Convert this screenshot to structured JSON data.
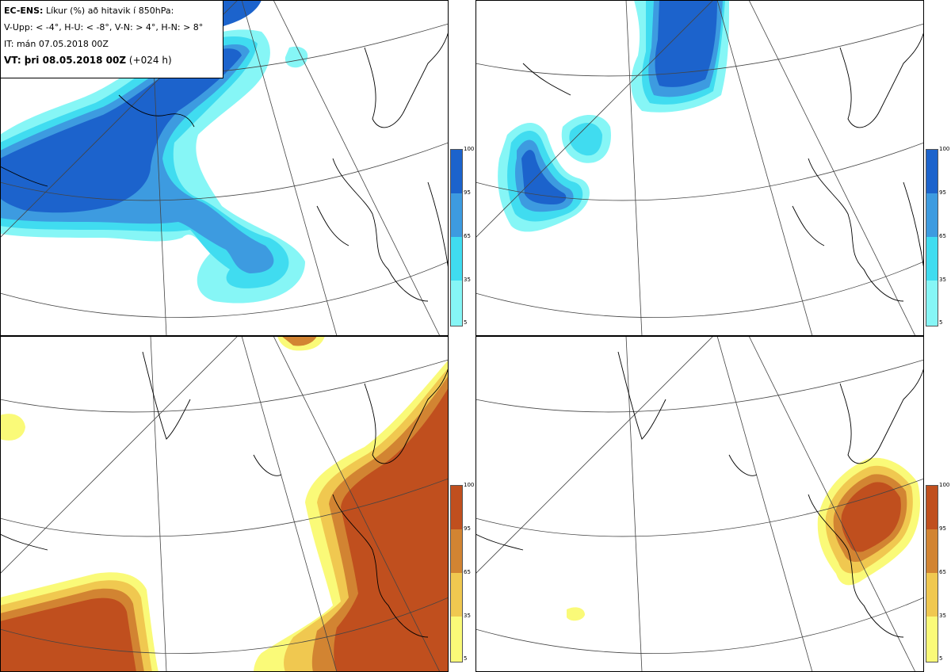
{
  "header": {
    "model_label": "EC-ENS:",
    "title": "Líkur (%) að hitavik í 850hPa:",
    "categories": "V-Upp: < -4°, H-U: < -8°, V-N: > 4°, H-N: > 8°",
    "initial_time": "IT: mán 07.05.2018 00Z",
    "valid_label": "VT: þri 08.05.2018 00Z",
    "lead": "(+024 h)"
  },
  "colorbar": {
    "ticks": [
      "100",
      "95",
      "65",
      "35",
      "5"
    ],
    "cold_colors": [
      "#86f6f6",
      "#40dcf0",
      "#3d9be0",
      "#1c63cc"
    ],
    "warm_colors": [
      "#fafa78",
      "#f0c850",
      "#d28432",
      "#c04f1e"
    ]
  },
  "panels": [
    {
      "name": "V-Upp",
      "threshold": "< -4°",
      "scheme": "cold"
    },
    {
      "name": "H-U",
      "threshold": "< -8°",
      "scheme": "cold"
    },
    {
      "name": "V-N",
      "threshold": "> 4°",
      "scheme": "warm"
    },
    {
      "name": "H-N",
      "threshold": "> 8°",
      "scheme": "warm"
    }
  ]
}
